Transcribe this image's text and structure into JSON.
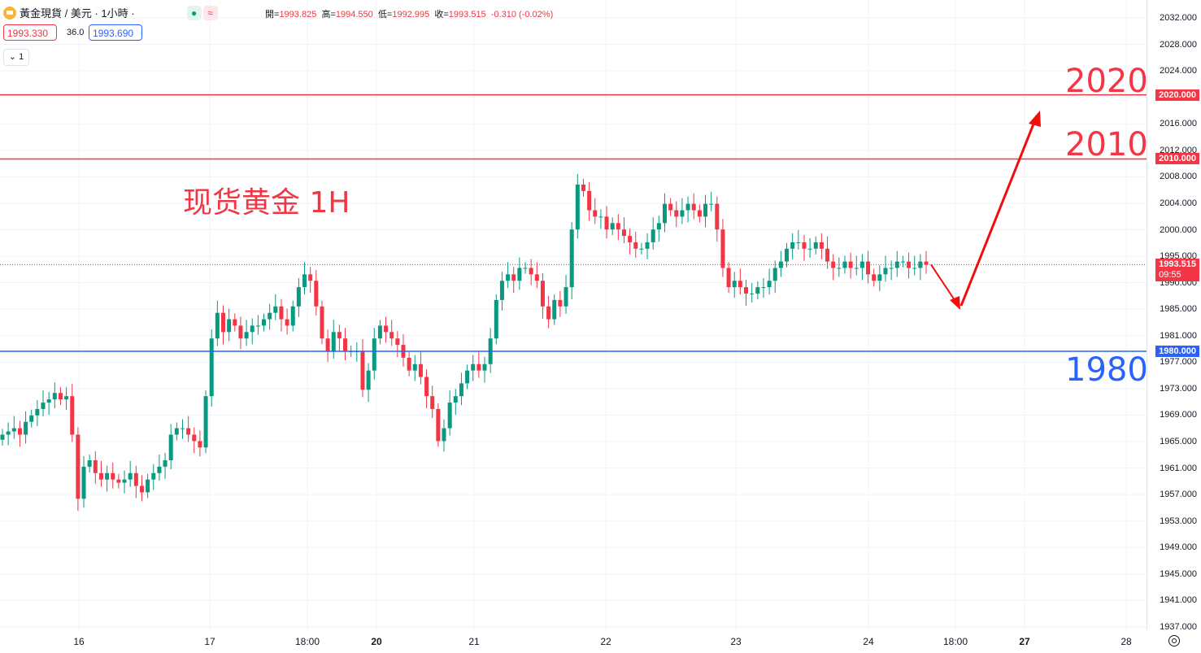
{
  "header": {
    "symbol": "黃金現貨 / 美元 · 1小時 ·",
    "dot_icon": "●",
    "wave_icon": "≈"
  },
  "ohlc": {
    "open_label": "開=",
    "open": "1993.825",
    "high_label": "高=",
    "high": "1994.550",
    "low_label": "低=",
    "low": "1992.995",
    "close_label": "收=",
    "close": "1993.515",
    "change": "-0.310 (-0.02%)"
  },
  "quote": {
    "bid": "1993.330",
    "spread": "36.0",
    "ask": "1993.690"
  },
  "interval_button": "⌄ 1",
  "annotation": "现货黄金 1H",
  "levels": [
    {
      "price": 2020,
      "label": "2020.000",
      "big": "2020",
      "color": "#f23645"
    },
    {
      "price": 2010,
      "label": "2010.000",
      "big": "2010",
      "color": "#f23645"
    },
    {
      "price": 1980,
      "label": "1980.000",
      "big": "1980",
      "color": "#2962ff"
    }
  ],
  "current": {
    "price": 1993.515,
    "label": "1993.515",
    "countdown": "09:55",
    "color": "#f23645"
  },
  "colors": {
    "up": "#089981",
    "down": "#f23645",
    "grid": "#f0f3fa",
    "arrow": "#f20d0d"
  },
  "chart_data": {
    "type": "candlestick",
    "yaxis": {
      "ticks": [
        "2032.000",
        "2028.000",
        "2024.000",
        "2020.000",
        "2016.000",
        "2012.000",
        "2008.000",
        "2004.000",
        "2000.000",
        "1995.000",
        "1990.000",
        "1985.000",
        "1981.000",
        "1977.000",
        "1973.000",
        "1969.000",
        "1965.000",
        "1961.000",
        "1957.000",
        "1953.000",
        "1949.000",
        "1945.000",
        "1941.000",
        "1937.000"
      ],
      "range": [
        1937,
        2033
      ]
    },
    "xaxis": {
      "ticks": [
        {
          "label": "16",
          "bold": false
        },
        {
          "label": "17",
          "bold": false
        },
        {
          "label": "18:00",
          "bold": false
        },
        {
          "label": "20",
          "bold": true
        },
        {
          "label": "21",
          "bold": false
        },
        {
          "label": "22",
          "bold": false
        },
        {
          "label": "23",
          "bold": false
        },
        {
          "label": "24",
          "bold": false
        },
        {
          "label": "18:00",
          "bold": false
        },
        {
          "label": "27",
          "bold": true
        },
        {
          "label": "28",
          "bold": false
        }
      ]
    },
    "closes": [
      1967,
      1967.5,
      1968,
      1967,
      1969,
      1970,
      1971,
      1972,
      1972.5,
      1973.5,
      1972.5,
      1973,
      1967,
      1957,
      1962,
      1963,
      1961,
      1960,
      1961,
      1960,
      1959.5,
      1960,
      1961,
      1959,
      1958,
      1960,
      1961,
      1962,
      1963,
      1967,
      1968,
      1968,
      1967,
      1966,
      1965,
      1973,
      1982,
      1986,
      1983,
      1985,
      1984,
      1982,
      1983,
      1984,
      1984,
      1985,
      1986,
      1987,
      1985,
      1984,
      1987,
      1990,
      1992,
      1991,
      1987,
      1982,
      1980,
      1983,
      1982,
      1980,
      1980,
      1980,
      1974,
      1977,
      1982,
      1984,
      1983,
      1982,
      1981,
      1979,
      1977,
      1978,
      1976,
      1973,
      1971,
      1966,
      1968,
      1972,
      1973,
      1975,
      1977,
      1978,
      1977,
      1978,
      1982,
      1988,
      1991,
      1992,
      1991,
      1993,
      1993,
      1992,
      1991,
      1987,
      1985,
      1988,
      1987,
      1990,
      1999,
      2006,
      2005,
      2002,
      2001,
      2001,
      1999,
      2000,
      1999,
      1998,
      1997,
      1996,
      1996,
      1997,
      1999,
      2000,
      2003,
      2002,
      2001,
      2002,
      2003,
      2002,
      2001,
      2003,
      2003,
      1999,
      1993,
      1990,
      1991,
      1990,
      1989,
      1989,
      1990,
      1990,
      1991,
      1993,
      1994,
      1996,
      1997,
      1997,
      1996,
      1996,
      1997,
      1996,
      1994,
      1993,
      1993,
      1994,
      1993,
      1993,
      1994,
      1992,
      1991,
      1992,
      1993,
      1993,
      1994,
      1994,
      1993,
      1993,
      1994,
      1993.5
    ]
  }
}
